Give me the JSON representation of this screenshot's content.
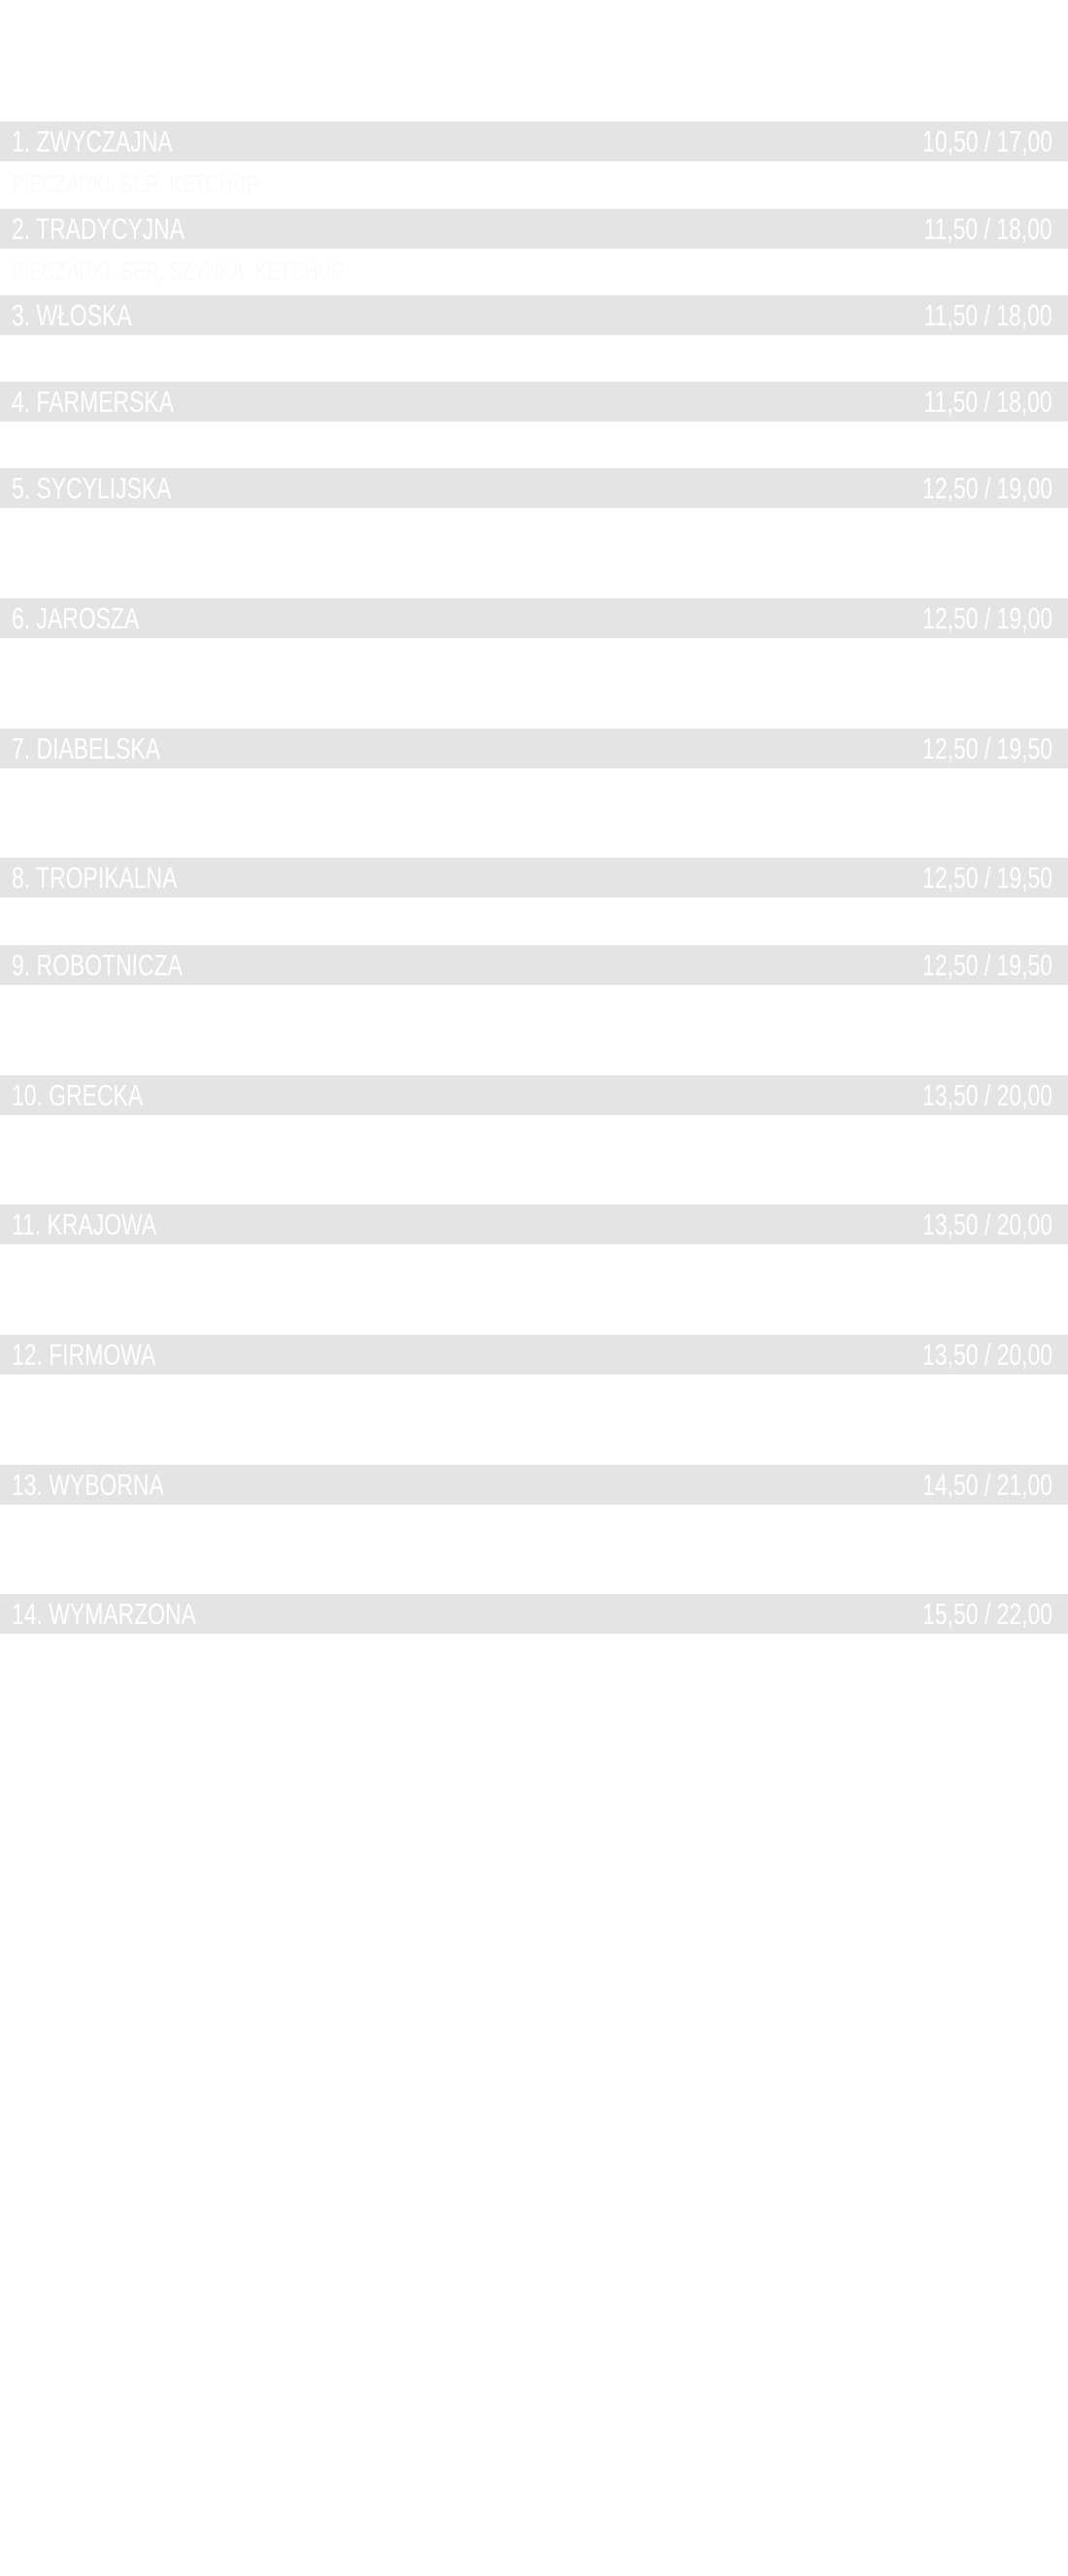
{
  "menu": {
    "items": [
      {
        "name": "1. ZWYCZAJNA",
        "price": "10,50 / 17,00",
        "description": "PIECZARKI, SER, KETCHUP"
      },
      {
        "name": "2. TRADYCYJNA",
        "price": "11,50 / 18,00",
        "description": "PIECZARKI, SER, SZYNKA, KETCHUP"
      },
      {
        "name": "3. WŁOSKA",
        "price": "11,50 / 18,00",
        "description": ""
      },
      {
        "name": "4. FARMERSKA",
        "price": "11,50 / 18,00",
        "description": ""
      },
      {
        "name": "5. SYCYLIJSKA",
        "price": "12,50 / 19,00",
        "description": ""
      },
      {
        "name": "6. JAROSZA",
        "price": "12,50 / 19,00",
        "description": ""
      },
      {
        "name": "7. DIABELSKA",
        "price": "12,50 / 19,50",
        "description": ""
      },
      {
        "name": "8. TROPIKALNA",
        "price": "12,50 / 19,50",
        "description": ""
      },
      {
        "name": "9. ROBOTNICZA",
        "price": "12,50 / 19,50",
        "description": ""
      },
      {
        "name": "10. GRECKA",
        "price": "13,50 / 20,00",
        "description": ""
      },
      {
        "name": "11. KRAJOWA",
        "price": "13,50 / 20,00",
        "description": ""
      },
      {
        "name": "12. FIRMOWA",
        "price": "13,50 / 20,00",
        "description": ""
      },
      {
        "name": "13. WYBORNA",
        "price": "14,50 / 21,00",
        "description": ""
      },
      {
        "name": "14. WYMARZONA",
        "price": "15,50 / 22,00",
        "description": ""
      }
    ]
  },
  "colors": {
    "band": "#e4e4e4",
    "text": "#ffffff"
  }
}
